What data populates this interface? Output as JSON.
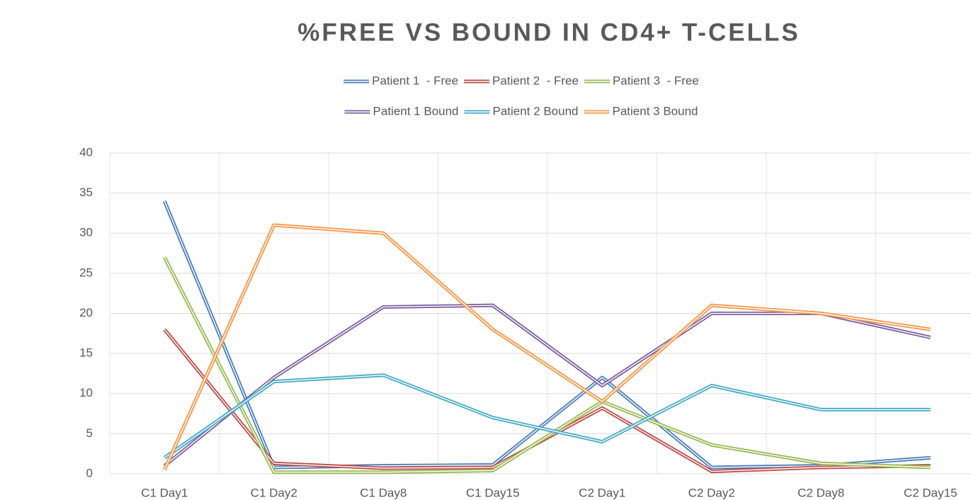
{
  "chart_data": {
    "type": "line",
    "title": "%FREE VS BOUND IN CD4+ T-CELLS",
    "categories": [
      "C1 Day1",
      "C1 Day2",
      "C1 Day8",
      "C1 Day15",
      "C2 Day1",
      "C2 Day2",
      "C2 Day8",
      "C2 Day15"
    ],
    "series": [
      {
        "name": "Patient 1  - Free",
        "color": "#4a7ebb",
        "values": [
          34,
          0.8,
          1.0,
          1.1,
          12,
          0.8,
          1.0,
          2.0
        ]
      },
      {
        "name": "Patient 2  - Free",
        "color": "#be4b48",
        "values": [
          18,
          1.3,
          0.7,
          0.8,
          8.2,
          0.3,
          0.8,
          1.0
        ]
      },
      {
        "name": "Patient 3  - Free",
        "color": "#98b954",
        "values": [
          27,
          0.2,
          0.2,
          0.4,
          9,
          3.6,
          1.3,
          0.8
        ]
      },
      {
        "name": "Patient 1 Bound",
        "color": "#7d60a0",
        "values": [
          1,
          12,
          20.8,
          21,
          11,
          20,
          20,
          17
        ]
      },
      {
        "name": "Patient 2 Bound",
        "color": "#46aac5",
        "values": [
          2,
          11.5,
          12.3,
          7,
          4,
          11,
          8,
          8
        ]
      },
      {
        "name": "Patient 3 Bound",
        "color": "#f79646",
        "values": [
          0.5,
          31,
          30,
          18,
          9,
          21,
          20,
          18
        ]
      }
    ],
    "ylim": [
      0,
      40
    ],
    "yticks": [
      0,
      5,
      10,
      15,
      20,
      25,
      30,
      35,
      40
    ],
    "grid": true,
    "legend": "top"
  }
}
